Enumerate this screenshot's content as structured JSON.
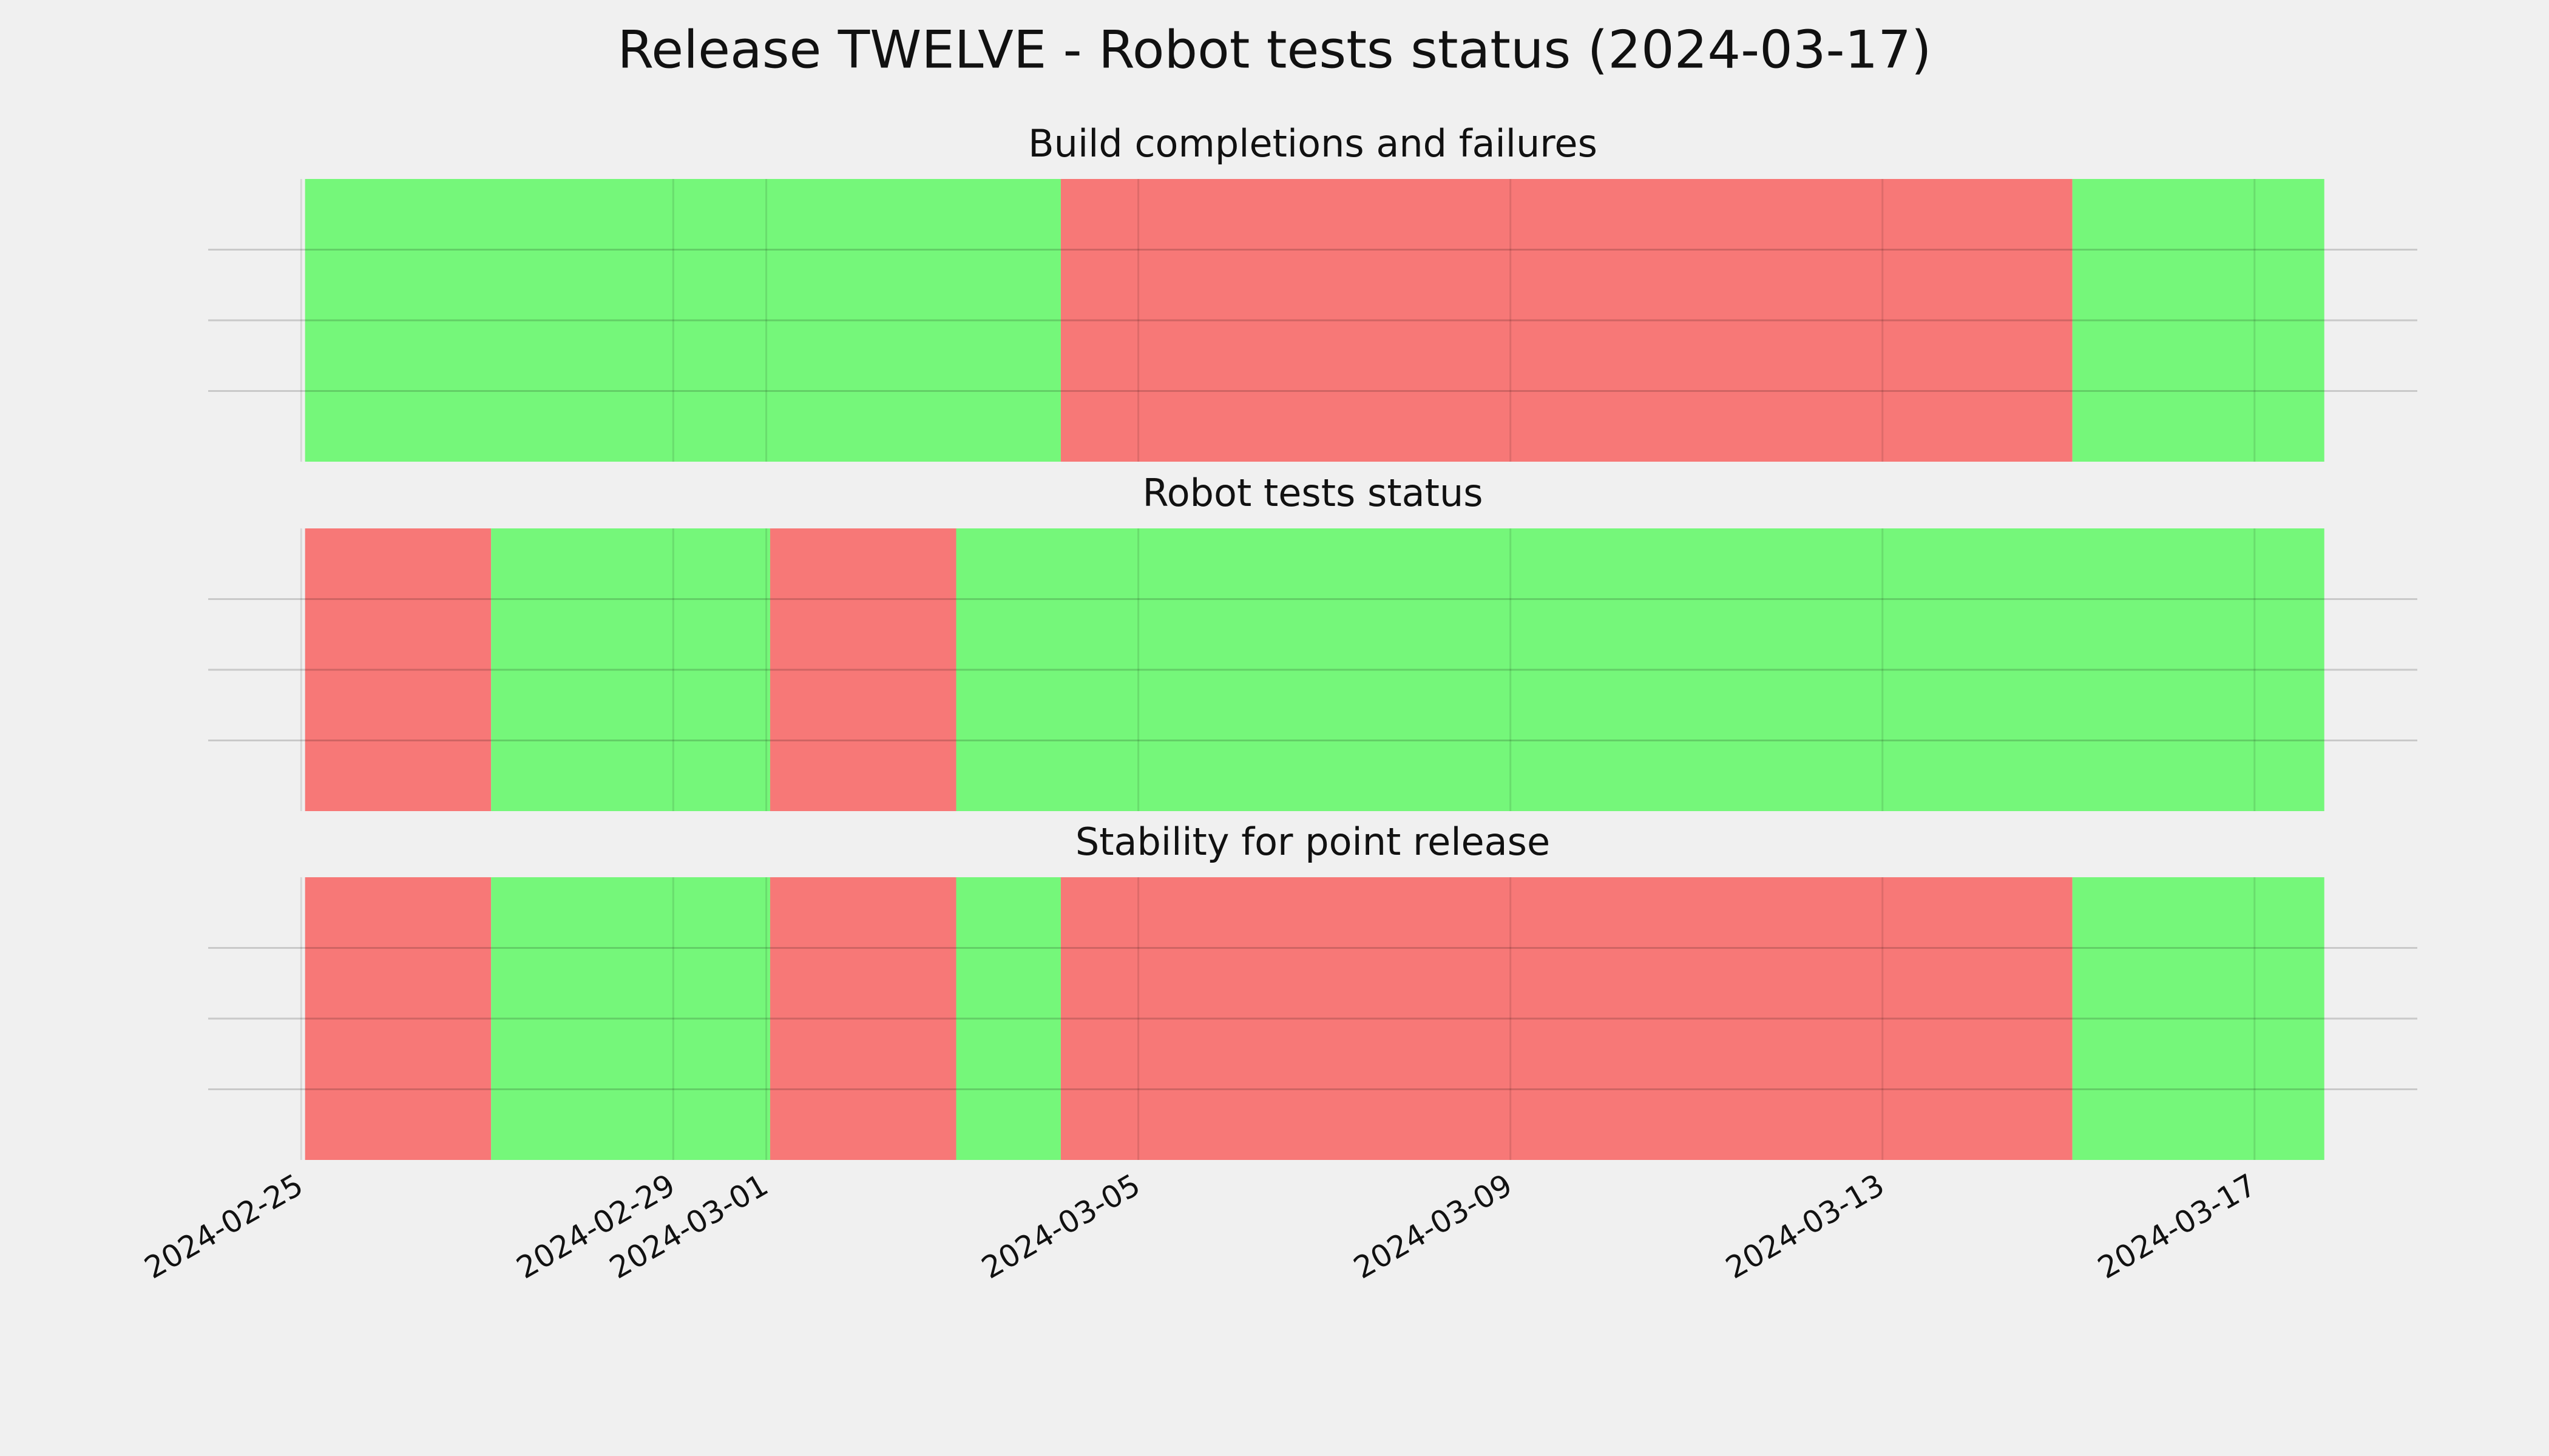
{
  "chart_data": {
    "type": "timeline",
    "title": "Release TWELVE - Robot tests status (2024-03-17)",
    "xlim": [
      "2024-02-24T00:00",
      "2024-03-18T18:00"
    ],
    "xticks": [
      "2024-02-25",
      "2024-02-29",
      "2024-03-01",
      "2024-03-05",
      "2024-03-09",
      "2024-03-13",
      "2024-03-17"
    ],
    "grid": true,
    "panels": [
      {
        "title": "Build completions and failures",
        "starts": [
          "2024-02-25T01:00",
          "2024-03-04T04:00",
          "2024-03-15T01:00"
        ],
        "ends": [
          "2024-03-04T04:00",
          "2024-03-15T01:00",
          "2024-03-17T18:00"
        ],
        "colors": [
          "#75f77a",
          "#f77877",
          "#75f77a"
        ]
      },
      {
        "title": "Robot tests status",
        "starts": [
          "2024-02-25T01:00",
          "2024-02-27T01:00",
          "2024-03-01T01:00",
          "2024-03-03T01:00"
        ],
        "ends": [
          "2024-02-27T01:00",
          "2024-03-01T01:00",
          "2024-03-03T01:00",
          "2024-03-17T18:00"
        ],
        "colors": [
          "#f77877",
          "#75f77a",
          "#f77877",
          "#75f77a"
        ]
      },
      {
        "title": "Stability for point release",
        "starts": [
          "2024-02-25T01:00",
          "2024-02-27T01:00",
          "2024-03-01T01:00",
          "2024-03-03T01:00",
          "2024-03-04T04:00",
          "2024-03-15T01:00"
        ],
        "ends": [
          "2024-02-27T01:00",
          "2024-03-01T01:00",
          "2024-03-03T01:00",
          "2024-03-04T04:00",
          "2024-03-15T01:00",
          "2024-03-17T18:00"
        ],
        "colors": [
          "#f77877",
          "#75f77a",
          "#f77877",
          "#75f77a",
          "#f77877",
          "#75f77a"
        ]
      }
    ]
  }
}
